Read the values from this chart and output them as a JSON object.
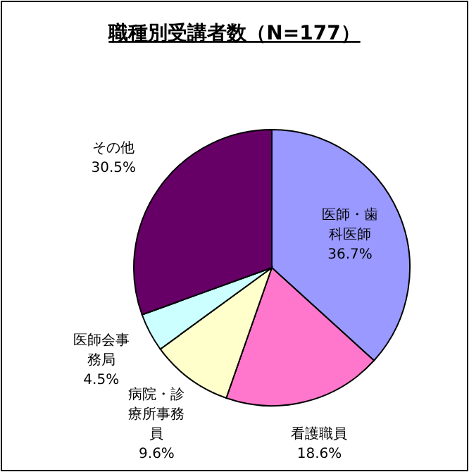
{
  "chart_data": {
    "type": "pie",
    "title": "職種別受講者数（N=177）",
    "categories": [
      "医師・歯科医師",
      "看護職員",
      "病院・診療所事務員",
      "医師会事務局",
      "その他"
    ],
    "values": [
      36.7,
      18.6,
      9.6,
      4.5,
      30.5
    ],
    "colors": [
      "#9999ff",
      "#ff77cc",
      "#ffffcc",
      "#ccffff",
      "#660066"
    ],
    "value_labels": [
      "36.7%",
      "18.6%",
      "9.6%",
      "4.5%",
      "30.5%"
    ]
  }
}
